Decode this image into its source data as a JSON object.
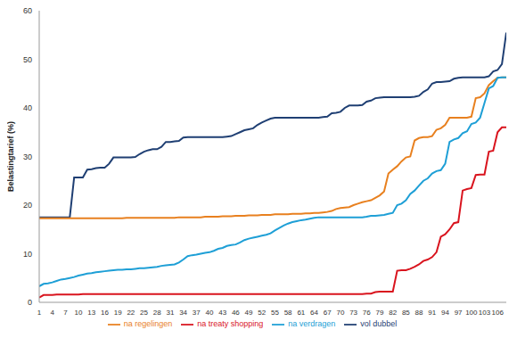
{
  "chart_data": {
    "type": "line",
    "y_label": "Belastingtarief (%)",
    "legend": "bottom",
    "grid": false,
    "x": [
      1,
      2,
      3,
      4,
      5,
      6,
      7,
      8,
      9,
      10,
      11,
      12,
      13,
      14,
      15,
      16,
      17,
      18,
      19,
      20,
      21,
      22,
      23,
      24,
      25,
      26,
      27,
      28,
      29,
      30,
      31,
      32,
      33,
      34,
      35,
      36,
      37,
      38,
      39,
      40,
      41,
      42,
      43,
      44,
      45,
      46,
      47,
      48,
      49,
      50,
      51,
      52,
      53,
      54,
      55,
      56,
      57,
      58,
      59,
      60,
      61,
      62,
      63,
      64,
      65,
      66,
      67,
      68,
      69,
      70,
      71,
      72,
      73,
      74,
      75,
      76,
      77,
      78,
      79,
      80,
      81,
      82,
      83,
      84,
      85,
      86,
      87,
      88,
      89,
      90,
      91,
      92,
      93,
      94,
      95,
      96,
      97,
      98,
      99,
      100,
      101,
      102,
      103,
      104,
      105,
      106,
      107,
      108
    ],
    "xlim": [
      1,
      108
    ],
    "xticks": [
      1,
      4,
      7,
      10,
      13,
      16,
      19,
      22,
      25,
      28,
      31,
      34,
      37,
      40,
      43,
      46,
      49,
      52,
      55,
      58,
      61,
      64,
      67,
      70,
      73,
      76,
      79,
      82,
      85,
      88,
      91,
      94,
      97,
      100,
      103,
      106
    ],
    "ylim": [
      0,
      60
    ],
    "yticks": [
      0,
      10,
      20,
      30,
      40,
      50,
      60
    ],
    "series": [
      {
        "name": "vol dubbel",
        "color": "#1f3f73",
        "values": [
          17.5,
          17.5,
          17.5,
          17.5,
          17.5,
          17.5,
          17.5,
          17.5,
          25.7,
          25.7,
          25.7,
          27.3,
          27.4,
          27.6,
          27.7,
          27.7,
          28.5,
          29.8,
          29.8,
          29.8,
          29.8,
          29.8,
          29.9,
          30.5,
          31.0,
          31.3,
          31.5,
          31.5,
          32.0,
          33.0,
          33.0,
          33.1,
          33.2,
          33.9,
          34.0,
          34.0,
          34.0,
          34.0,
          34.0,
          34.0,
          34.0,
          34.0,
          34.0,
          34.1,
          34.2,
          34.6,
          35.0,
          35.4,
          35.6,
          35.8,
          36.5,
          37.0,
          37.4,
          37.8,
          38.0,
          38.0,
          38.0,
          38.0,
          38.0,
          38.0,
          38.0,
          38.0,
          38.0,
          38.0,
          38.0,
          38.1,
          38.2,
          38.9,
          39.0,
          39.2,
          40.0,
          40.5,
          40.5,
          40.5,
          40.6,
          41.3,
          41.5,
          42.0,
          42.1,
          42.2,
          42.2,
          42.2,
          42.2,
          42.2,
          42.2,
          42.2,
          42.3,
          42.5,
          43.3,
          43.8,
          45.0,
          45.3,
          45.3,
          45.4,
          45.5,
          46.0,
          46.2,
          46.3,
          46.3,
          46.3,
          46.3,
          46.3,
          46.3,
          46.5,
          47.5,
          47.8,
          49.0,
          55.5
        ]
      },
      {
        "name": "na regelingen",
        "color": "#e8801f",
        "values": [
          17.3,
          17.3,
          17.3,
          17.3,
          17.3,
          17.3,
          17.3,
          17.3,
          17.3,
          17.3,
          17.3,
          17.3,
          17.3,
          17.3,
          17.3,
          17.3,
          17.3,
          17.3,
          17.3,
          17.3,
          17.4,
          17.4,
          17.4,
          17.4,
          17.4,
          17.4,
          17.4,
          17.4,
          17.4,
          17.4,
          17.4,
          17.4,
          17.5,
          17.5,
          17.5,
          17.5,
          17.5,
          17.5,
          17.6,
          17.6,
          17.6,
          17.6,
          17.7,
          17.7,
          17.7,
          17.8,
          17.8,
          17.8,
          17.9,
          17.9,
          17.9,
          18.0,
          18.0,
          18.0,
          18.1,
          18.1,
          18.1,
          18.1,
          18.2,
          18.2,
          18.2,
          18.3,
          18.3,
          18.4,
          18.4,
          18.5,
          18.6,
          18.8,
          19.2,
          19.4,
          19.5,
          19.6,
          20.0,
          20.3,
          20.6,
          20.8,
          21.0,
          21.5,
          22.0,
          22.8,
          26.5,
          27.3,
          28.0,
          29.0,
          29.8,
          30.0,
          33.3,
          33.8,
          34.0,
          34.0,
          34.2,
          35.5,
          35.8,
          36.5,
          38.0,
          38.0,
          38.0,
          38.0,
          38.0,
          38.2,
          42.0,
          42.2,
          43.0,
          44.7,
          45.5,
          46.2,
          46.3,
          46.3
        ]
      },
      {
        "name": "na verdragen",
        "color": "#1e9fd6",
        "values": [
          3.3,
          3.8,
          3.9,
          4.1,
          4.4,
          4.7,
          4.8,
          5.0,
          5.2,
          5.5,
          5.7,
          5.9,
          6.0,
          6.2,
          6.3,
          6.4,
          6.5,
          6.6,
          6.7,
          6.7,
          6.8,
          6.8,
          6.9,
          7.0,
          7.0,
          7.1,
          7.2,
          7.3,
          7.5,
          7.6,
          7.7,
          7.8,
          8.2,
          8.8,
          9.5,
          9.7,
          9.8,
          10.0,
          10.2,
          10.3,
          10.6,
          11.0,
          11.2,
          11.6,
          11.8,
          11.9,
          12.3,
          12.8,
          13.1,
          13.3,
          13.5,
          13.7,
          13.9,
          14.2,
          14.8,
          15.3,
          15.8,
          16.2,
          16.5,
          16.7,
          16.9,
          17.0,
          17.2,
          17.4,
          17.5,
          17.5,
          17.5,
          17.5,
          17.5,
          17.5,
          17.5,
          17.5,
          17.5,
          17.5,
          17.5,
          17.6,
          17.8,
          17.8,
          17.9,
          18.0,
          18.2,
          18.4,
          20.0,
          20.3,
          21.0,
          22.3,
          23.0,
          24.0,
          25.0,
          25.5,
          26.5,
          27.0,
          27.2,
          28.5,
          33.0,
          33.5,
          33.8,
          34.8,
          35.2,
          36.7,
          37.0,
          38.0,
          41.0,
          44.0,
          44.5,
          46.2,
          46.3,
          46.3
        ]
      },
      {
        "name": "na treaty shopping",
        "color": "#d9141e",
        "values": [
          1.0,
          1.5,
          1.5,
          1.5,
          1.6,
          1.6,
          1.6,
          1.6,
          1.6,
          1.6,
          1.7,
          1.7,
          1.7,
          1.7,
          1.7,
          1.7,
          1.7,
          1.7,
          1.7,
          1.7,
          1.7,
          1.7,
          1.7,
          1.7,
          1.7,
          1.7,
          1.7,
          1.7,
          1.7,
          1.7,
          1.7,
          1.7,
          1.7,
          1.7,
          1.7,
          1.7,
          1.7,
          1.7,
          1.7,
          1.7,
          1.7,
          1.7,
          1.7,
          1.7,
          1.7,
          1.7,
          1.7,
          1.7,
          1.7,
          1.7,
          1.7,
          1.7,
          1.7,
          1.7,
          1.7,
          1.7,
          1.7,
          1.7,
          1.7,
          1.7,
          1.7,
          1.7,
          1.7,
          1.7,
          1.7,
          1.7,
          1.7,
          1.7,
          1.7,
          1.7,
          1.7,
          1.7,
          1.7,
          1.7,
          1.7,
          1.8,
          1.8,
          2.1,
          2.2,
          2.2,
          2.2,
          2.2,
          6.5,
          6.6,
          6.6,
          6.9,
          7.3,
          7.8,
          8.5,
          8.8,
          9.3,
          10.3,
          13.5,
          14.0,
          15.0,
          16.3,
          16.5,
          23.0,
          23.3,
          23.5,
          26.2,
          26.3,
          26.3,
          31.0,
          31.2,
          35.0,
          36.0,
          36.0
        ]
      }
    ]
  }
}
